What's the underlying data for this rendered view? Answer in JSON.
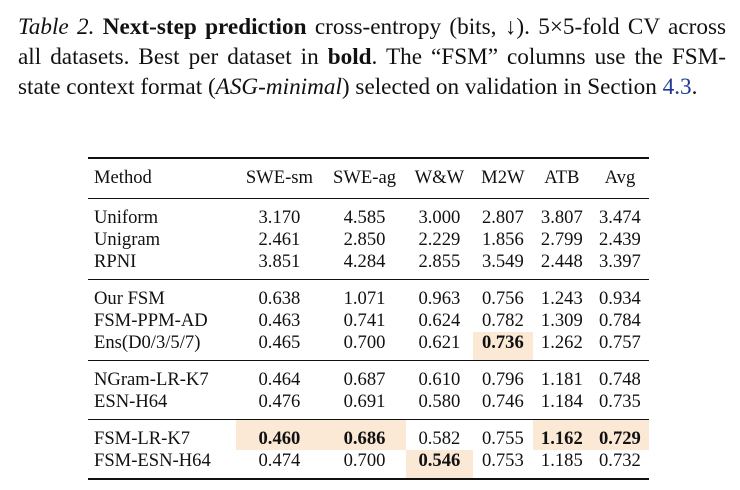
{
  "caption": {
    "label": "Table 2.",
    "title": "Next-step prediction",
    "part1": " cross-entropy (bits, ↓). 5×5-fold CV across all datasets. Best per dataset in ",
    "bold_word": "bold",
    "part2": ". The “FSM” columns use the FSM-state context format (",
    "format_name": "ASG-minimal",
    "part3": ") selected on validation in Section ",
    "section_ref": "4.3",
    "end": "."
  },
  "table": {
    "headers": [
      "Method",
      "SWE-sm",
      "SWE-ag",
      "W&W",
      "M2W",
      "ATB",
      "Avg"
    ],
    "groups": [
      [
        {
          "method": "Uniform",
          "cells": [
            "3.170",
            "4.585",
            "3.000",
            "2.807",
            "3.807",
            "3.474"
          ],
          "best": []
        },
        {
          "method": "Unigram",
          "cells": [
            "2.461",
            "2.850",
            "2.229",
            "1.856",
            "2.799",
            "2.439"
          ],
          "best": []
        },
        {
          "method": "RPNI",
          "cells": [
            "3.851",
            "4.284",
            "2.855",
            "3.549",
            "2.448",
            "3.397"
          ],
          "best": []
        }
      ],
      [
        {
          "method": "Our FSM",
          "cells": [
            "0.638",
            "1.071",
            "0.963",
            "0.756",
            "1.243",
            "0.934"
          ],
          "best": []
        },
        {
          "method": "FSM-PPM-AD",
          "cells": [
            "0.463",
            "0.741",
            "0.624",
            "0.782",
            "1.309",
            "0.784"
          ],
          "best": []
        },
        {
          "method": "Ens(D0/3/5/7)",
          "cells": [
            "0.465",
            "0.700",
            "0.621",
            "0.736",
            "1.262",
            "0.757"
          ],
          "best": [
            3
          ]
        }
      ],
      [
        {
          "method": "NGram-LR-K7",
          "cells": [
            "0.464",
            "0.687",
            "0.610",
            "0.796",
            "1.181",
            "0.748"
          ],
          "best": []
        },
        {
          "method": "ESN-H64",
          "cells": [
            "0.476",
            "0.691",
            "0.580",
            "0.746",
            "1.184",
            "0.735"
          ],
          "best": []
        }
      ],
      [
        {
          "method": "FSM-LR-K7",
          "cells": [
            "0.460",
            "0.686",
            "0.582",
            "0.755",
            "1.162",
            "0.729"
          ],
          "best": [
            0,
            1,
            4,
            5
          ]
        },
        {
          "method": "FSM-ESN-H64",
          "cells": [
            "0.474",
            "0.700",
            "0.546",
            "0.753",
            "1.185",
            "0.732"
          ],
          "best": [
            2
          ]
        }
      ]
    ]
  }
}
